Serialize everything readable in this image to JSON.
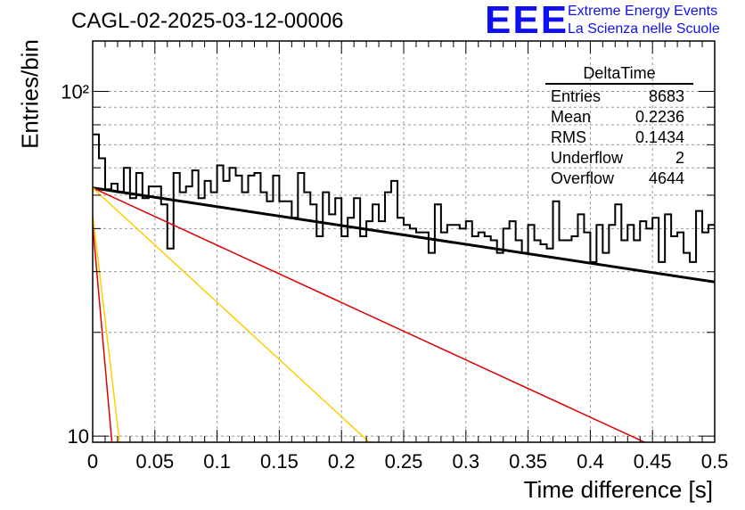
{
  "header": {
    "title": "CAGL-02-2025-03-12-00006",
    "logo_text": "EEE",
    "logo_line1": "Extreme Energy Events",
    "logo_line2": "La Scienza nelle Scuole"
  },
  "stats": {
    "name": "DeltaTime",
    "rows": [
      {
        "label": "Entries",
        "value": "8683"
      },
      {
        "label": "Mean",
        "value": "0.2236"
      },
      {
        "label": "RMS",
        "value": "0.1434"
      },
      {
        "label": "Underflow",
        "value": "2"
      },
      {
        "label": "Overflow",
        "value": "4644"
      }
    ]
  },
  "chart_data": {
    "type": "histogram",
    "xlabel": "Time difference [s]",
    "ylabel": "Entries/bin",
    "xlim": [
      0,
      0.5
    ],
    "ylim": [
      9.6,
      140
    ],
    "y_scale": "log",
    "grid": true,
    "bin_width": 0.005,
    "x_ticks": [
      0,
      0.05,
      0.1,
      0.15,
      0.2,
      0.25,
      0.3,
      0.35,
      0.4,
      0.45,
      0.5
    ],
    "x_tick_labels": [
      "0",
      "0.05",
      "0.1",
      "0.15",
      "0.2",
      "0.25",
      "0.3",
      "0.35",
      "0.4",
      "0.45",
      "0.5"
    ],
    "y_ticks": [
      10,
      100
    ],
    "y_tick_labels": [
      "10",
      "10²"
    ],
    "values": [
      75,
      64,
      52,
      54,
      51,
      60,
      49,
      58,
      49,
      53,
      53,
      47,
      35,
      58,
      51,
      53,
      59,
      49,
      55,
      51,
      61,
      55,
      60,
      57,
      51,
      57,
      58,
      51,
      48,
      57,
      48,
      48,
      43,
      58,
      51,
      47,
      38,
      51,
      44,
      49,
      38,
      43,
      49,
      38,
      42,
      47,
      42,
      51,
      55,
      43,
      41,
      40,
      39,
      39,
      34,
      47,
      39,
      41,
      41,
      40,
      42,
      38,
      39,
      38,
      37,
      34,
      40,
      42,
      37,
      34,
      41,
      37,
      36,
      35,
      48,
      37,
      37,
      38,
      44,
      39,
      32,
      41,
      34,
      41,
      47,
      37,
      41,
      37,
      42,
      40,
      43,
      32,
      44,
      38,
      39,
      34,
      32,
      45,
      39,
      41
    ],
    "fits": [
      {
        "color": "#000000",
        "width": 3,
        "y0": 52.5,
        "y1": 28
      },
      {
        "color": "#dd0000",
        "width": 1.5,
        "y0": 52.5,
        "x_at_10": 0.433
      },
      {
        "color": "#ffcc00",
        "width": 1.5,
        "y0": 52.5,
        "x_at_10": 0.217
      },
      {
        "color": "#ffcc00",
        "width": 1.5,
        "y0": 44,
        "x_at_10": 0.021
      },
      {
        "color": "#dd0000",
        "width": 1.5,
        "y0": 41,
        "x_at_10": 0.015
      }
    ]
  }
}
